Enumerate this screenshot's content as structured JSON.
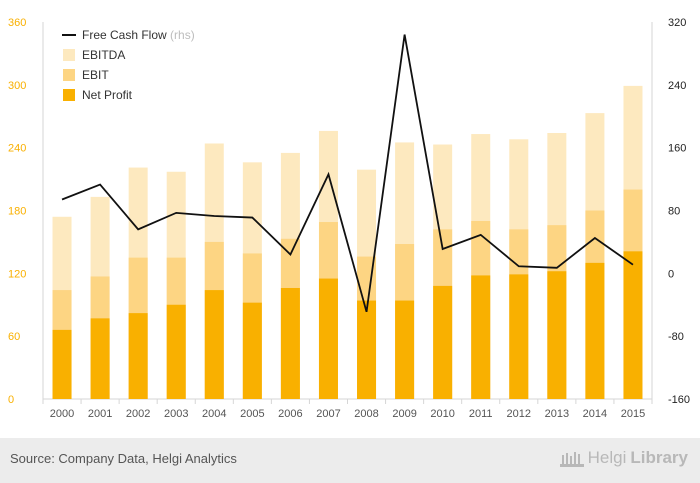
{
  "chart_data": {
    "type": "bar",
    "stacked_overlay": true,
    "categories": [
      "2000",
      "2001",
      "2002",
      "2003",
      "2004",
      "2005",
      "2006",
      "2007",
      "2008",
      "2009",
      "2010",
      "2011",
      "2012",
      "2013",
      "2014",
      "2015"
    ],
    "series": [
      {
        "name": "EBITDA",
        "type": "bar",
        "axis": "left",
        "color": "#fde9bf",
        "values": [
          174,
          193,
          221,
          217,
          244,
          226,
          235,
          256,
          219,
          245,
          243,
          253,
          248,
          254,
          273,
          299
        ]
      },
      {
        "name": "EBIT",
        "type": "bar",
        "axis": "left",
        "color": "#fdd583",
        "values": [
          104,
          117,
          135,
          135,
          150,
          139,
          153,
          169,
          136,
          148,
          162,
          170,
          162,
          166,
          180,
          200
        ]
      },
      {
        "name": "Net Profit",
        "type": "bar",
        "axis": "left",
        "color": "#f9b000",
        "values": [
          66,
          77,
          82,
          90,
          104,
          92,
          106,
          115,
          94,
          94,
          108,
          118,
          119,
          122,
          130,
          141
        ]
      },
      {
        "name": "Free Cash Flow",
        "suffix": "(rhs)",
        "type": "line",
        "axis": "right",
        "color": "#111111",
        "values": [
          94,
          113,
          56,
          77,
          73,
          71,
          24,
          126,
          -49,
          304,
          31,
          49,
          9,
          7,
          45,
          11
        ]
      }
    ],
    "y_left": {
      "min": 0,
      "max": 360,
      "ticks": [
        0,
        60,
        120,
        180,
        240,
        300,
        360
      ]
    },
    "y_right": {
      "min": -160,
      "max": 320,
      "ticks": [
        -160,
        -80,
        0,
        80,
        160,
        240,
        320
      ]
    },
    "legend_order": [
      "Free Cash Flow",
      "EBITDA",
      "EBIT",
      "Net Profit"
    ],
    "legend_position": "top-left",
    "grid": false,
    "left_tick_color": "#f9b000",
    "right_tick_color": "#222222"
  },
  "footer": {
    "source": "Source: Company Data, Helgi Analytics",
    "brand_light": "Helgi",
    "brand_bold": "Library"
  }
}
